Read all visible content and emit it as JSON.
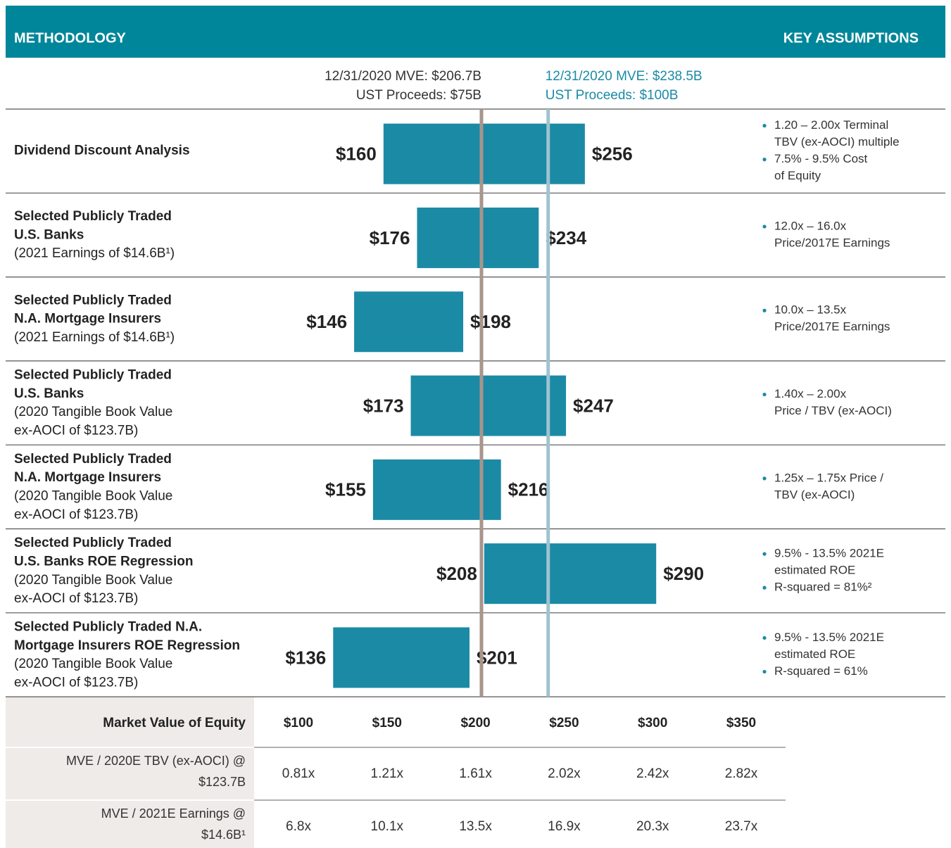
{
  "header": {
    "left": "METHODOLOGY",
    "right": "KEY ASSUMPTIONS"
  },
  "chart_data": {
    "type": "range_bar",
    "color": "#1b8aa5",
    "xlim": [
      100,
      350
    ],
    "xticks": [
      {
        "value": 100,
        "label": "$100"
      },
      {
        "value": 150,
        "label": "$150"
      },
      {
        "value": 200,
        "label": "$200"
      },
      {
        "value": 250,
        "label": "$250"
      },
      {
        "value": 300,
        "label": "$300"
      },
      {
        "value": 350,
        "label": "$350"
      }
    ],
    "reference_lines": [
      {
        "value": 206.7,
        "color": "#a8958c",
        "text_color": "#333333",
        "label": [
          "12/31/2020 MVE: $206.7B",
          "UST Proceeds: $75B"
        ]
      },
      {
        "value": 238.5,
        "color": "#9fc3cf",
        "text_color": "#1b8aa5",
        "label": [
          "12/31/2020 MVE: $238.5B",
          "UST Proceeds: $100B"
        ]
      }
    ],
    "rows": [
      {
        "label": [
          "Dividend Discount Analysis"
        ],
        "detail": [],
        "low": 160,
        "high": 256,
        "low_label": "$160",
        "high_label": "$256",
        "assumptions": [
          [
            "1.20 – 2.00x Terminal",
            "TBV (ex-AOCI) multiple"
          ],
          [
            "7.5% - 9.5% Cost",
            "of Equity"
          ]
        ]
      },
      {
        "label": [
          "Selected Publicly Traded",
          "U.S. Banks"
        ],
        "detail": [
          "(2021 Earnings of $14.6B¹)"
        ],
        "low": 176,
        "high": 234,
        "low_label": "$176",
        "high_label": "$234",
        "assumptions": [
          [
            "12.0x – 16.0x",
            "Price/2017E Earnings"
          ]
        ]
      },
      {
        "label": [
          "Selected Publicly Traded",
          "N.A. Mortgage Insurers"
        ],
        "detail": [
          "(2021 Earnings of $14.6B¹)"
        ],
        "low": 146,
        "high": 198,
        "low_label": "$146",
        "high_label": "$198",
        "assumptions": [
          [
            "10.0x – 13.5x",
            "Price/2017E Earnings"
          ]
        ]
      },
      {
        "label": [
          "Selected Publicly Traded",
          "U.S. Banks"
        ],
        "detail": [
          "(2020 Tangible Book Value",
          "ex-AOCI of $123.7B)"
        ],
        "low": 173,
        "high": 247,
        "low_label": "$173",
        "high_label": "$247",
        "assumptions": [
          [
            "1.40x – 2.00x",
            "Price / TBV (ex-AOCI)"
          ]
        ]
      },
      {
        "label": [
          "Selected Publicly Traded",
          "N.A. Mortgage Insurers"
        ],
        "detail": [
          "(2020 Tangible Book Value",
          "ex-AOCI of $123.7B)"
        ],
        "low": 155,
        "high": 216,
        "low_label": "$155",
        "high_label": "$216",
        "assumptions": [
          [
            "1.25x – 1.75x Price /",
            "TBV (ex-AOCI)"
          ]
        ]
      },
      {
        "label": [
          "Selected Publicly Traded",
          "U.S. Banks ROE Regression"
        ],
        "detail": [
          "(2020 Tangible Book Value",
          "ex-AOCI of $123.7B)"
        ],
        "low": 208,
        "high": 290,
        "low_label": "$208",
        "high_label": "$290",
        "assumptions": [
          [
            "9.5% - 13.5% 2021E",
            "estimated ROE"
          ],
          [
            "R-squared = 81%²"
          ]
        ]
      },
      {
        "label": [
          "Selected Publicly Traded N.A.",
          "Mortgage Insurers ROE Regression"
        ],
        "detail": [
          "(2020 Tangible Book Value",
          "ex-AOCI of $123.7B)"
        ],
        "low": 136,
        "high": 201,
        "low_label": "$136",
        "high_label": "$201",
        "assumptions": [
          [
            "9.5% - 13.5% 2021E",
            "estimated ROE"
          ],
          [
            "R-squared = 61%"
          ]
        ]
      }
    ]
  },
  "table": {
    "header": "Market Value of Equity",
    "rows": [
      {
        "label": [
          "MVE / 2020E TBV (ex-AOCI) @",
          "$123.7B"
        ],
        "values": [
          "0.81x",
          "1.21x",
          "1.61x",
          "2.02x",
          "2.42x",
          "2.82x"
        ]
      },
      {
        "label": [
          "MVE / 2021E Earnings @",
          "$14.6B¹"
        ],
        "values": [
          "6.8x",
          "10.1x",
          "13.5x",
          "16.9x",
          "20.3x",
          "23.7x"
        ]
      }
    ]
  }
}
